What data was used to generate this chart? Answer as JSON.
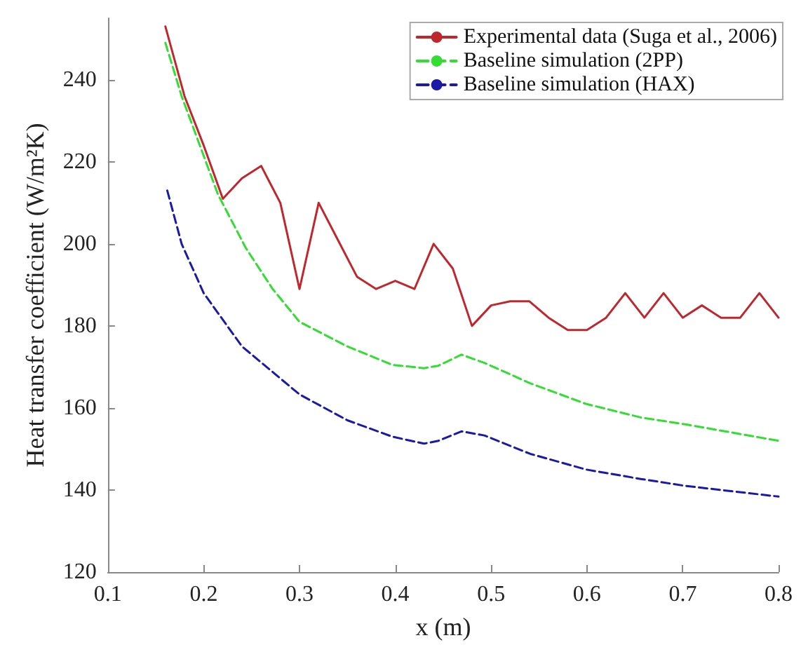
{
  "chart_data": {
    "type": "line",
    "xlabel": "x (m)",
    "ylabel": "Heat transfer coefficient (W/m²K)",
    "xlim": [
      0.1,
      0.8
    ],
    "ylim": [
      120,
      255
    ],
    "xticks": [
      0.1,
      0.2,
      0.3,
      0.4,
      0.5,
      0.6,
      0.7,
      0.8
    ],
    "yticks": [
      120,
      140,
      160,
      180,
      200,
      220,
      240
    ],
    "grid": false,
    "legend": "top right",
    "marker": "none",
    "series": [
      {
        "name": "Experimental data (Suga et al., 2006)",
        "color": "#c0272d",
        "line_style": "solid",
        "x": [
          0.16,
          0.18,
          0.2,
          0.22,
          0.24,
          0.26,
          0.28,
          0.3,
          0.32,
          0.34,
          0.36,
          0.38,
          0.4,
          0.42,
          0.44,
          0.46,
          0.48,
          0.5,
          0.52,
          0.54,
          0.56,
          0.58,
          0.6,
          0.62,
          0.64,
          0.66,
          0.68,
          0.7,
          0.72,
          0.74,
          0.76,
          0.78,
          0.8
        ],
        "values": [
          253,
          236,
          224,
          211,
          216,
          219,
          210,
          189,
          210,
          201,
          192,
          189,
          191,
          189,
          200,
          194,
          180,
          185,
          186,
          186,
          182,
          179,
          179,
          182,
          188,
          182,
          188,
          182,
          185,
          182,
          182,
          188,
          182
        ]
      },
      {
        "name": "Baseline simulation (2PP)",
        "color": "#33dd33",
        "line_style": "dashed",
        "x": [
          0.16,
          0.177,
          0.196,
          0.215,
          0.244,
          0.272,
          0.3,
          0.35,
          0.397,
          0.43,
          0.445,
          0.469,
          0.493,
          0.541,
          0.599,
          0.656,
          0.703,
          0.8
        ],
        "values": [
          249,
          236,
          224,
          212,
          199,
          189,
          181,
          175,
          170.5,
          169.7,
          170.3,
          173,
          171,
          166,
          161,
          157.7,
          156,
          152
        ]
      },
      {
        "name": "Baseline simulation (HAX)",
        "color": "#1a1aa6",
        "line_style": "dashed",
        "x": [
          0.162,
          0.177,
          0.2,
          0.24,
          0.3,
          0.35,
          0.397,
          0.43,
          0.445,
          0.469,
          0.493,
          0.541,
          0.599,
          0.656,
          0.703,
          0.8
        ],
        "values": [
          213,
          200,
          188,
          175,
          163.3,
          157,
          153,
          151.3,
          152,
          154.3,
          153.3,
          148.8,
          145,
          142.7,
          141,
          138.4
        ]
      }
    ]
  }
}
